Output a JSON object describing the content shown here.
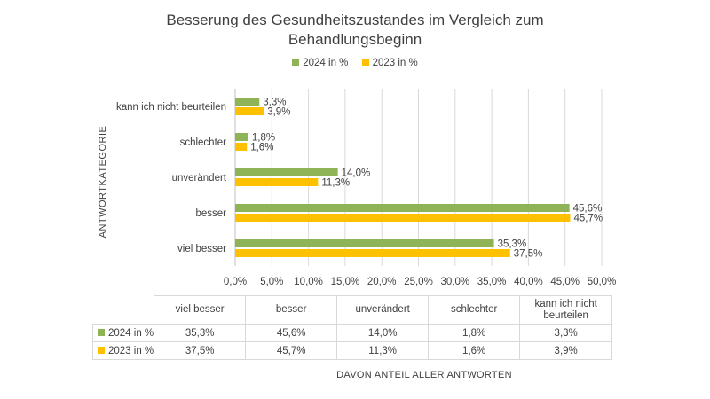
{
  "chart_data": {
    "type": "bar",
    "orientation": "horizontal",
    "title_lines": [
      "Besserung des Gesundheitszustandes im Vergleich zum",
      "Behandlungsbeginn"
    ],
    "xlabel": "DAVON ANTEIL ALLER ANTWORTEN",
    "ylabel": "ANTWORTKATEGORIE",
    "categories": [
      "viel besser",
      "besser",
      "unverändert",
      "schlechter",
      "kann ich nicht beurteilen"
    ],
    "table_headers": [
      [
        "viel besser"
      ],
      [
        "besser"
      ],
      [
        "unverändert"
      ],
      [
        "schlechter"
      ],
      [
        "kann ich nicht",
        "beurteilen"
      ]
    ],
    "series": [
      {
        "name": "2024 in %",
        "color": "#8fb357",
        "values": [
          35.3,
          45.6,
          14.0,
          1.8,
          3.3
        ],
        "labels": [
          "35,3%",
          "45,6%",
          "14,0%",
          "1,8%",
          "3,3%"
        ]
      },
      {
        "name": "2023 in %",
        "color": "#ffc000",
        "values": [
          37.5,
          45.7,
          11.3,
          1.6,
          3.9
        ],
        "labels": [
          "37,5%",
          "45,7%",
          "11,3%",
          "1,6%",
          "3,9%"
        ]
      }
    ],
    "xlim": [
      0,
      50
    ],
    "ticks": [
      0,
      5,
      10,
      15,
      20,
      25,
      30,
      35,
      40,
      45,
      50
    ],
    "tick_labels": [
      "0,0%",
      "5,0%",
      "10,0%",
      "15,0%",
      "20,0%",
      "25,0%",
      "30,0%",
      "35,0%",
      "40,0%",
      "45,0%",
      "50,0%"
    ],
    "grid": true,
    "legend_position": "top",
    "data_table": true
  }
}
